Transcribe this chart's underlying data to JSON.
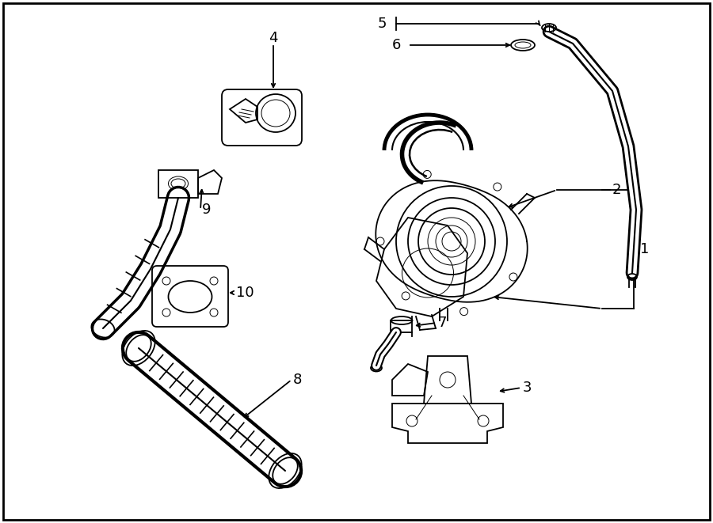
{
  "bg_color": "#ffffff",
  "line_color": "#000000",
  "fig_width": 9.0,
  "fig_height": 6.61,
  "dpi": 100,
  "lw": 1.3,
  "lw_thin": 0.7,
  "lw_thick": 2.2,
  "fontsize": 13
}
